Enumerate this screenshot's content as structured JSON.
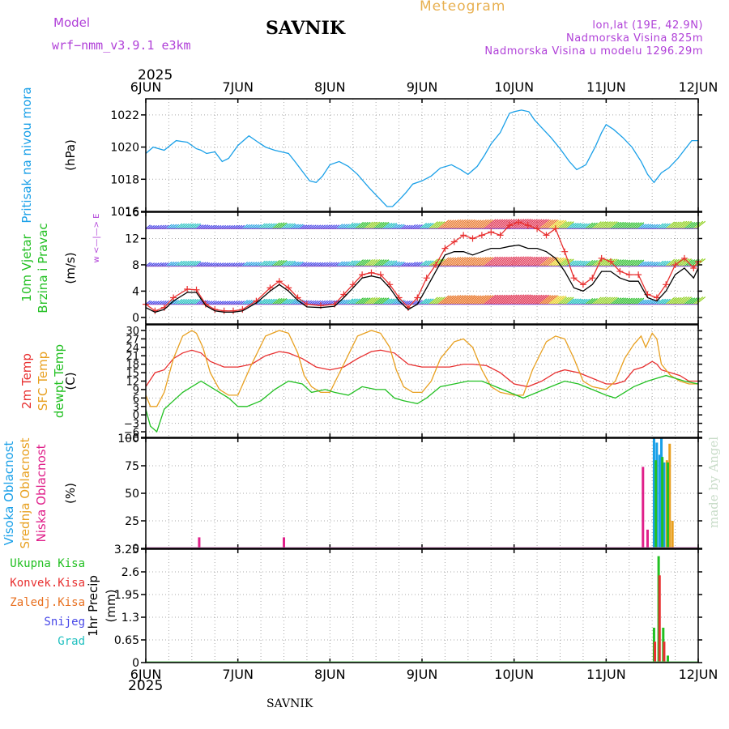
{
  "header": {
    "model_label": "Model",
    "model_name": "wrf−nmm_v3.9.1  e3km",
    "station": "SAVNIK",
    "app_title": "Meteogram",
    "lonlat": "lon,lat (19E, 42.9N)",
    "elevation": "Nadmorska Visina 825m",
    "model_elevation": "Nadmorska Visina u modelu 1296.29m",
    "footer_station": "SAVNIK",
    "credit": "made by Angel",
    "colors": {
      "model": "#b040d8",
      "title": "#000000",
      "meteogram": "#e8b050",
      "info": "#b040d8"
    }
  },
  "time_axis": {
    "year": "2025",
    "labels": [
      "6JUN",
      "7JUN",
      "8JUN",
      "9JUN",
      "10JUN",
      "11JUN",
      "12JUN"
    ],
    "day_count": 6
  },
  "chart_data": [
    {
      "type": "line",
      "id": "pressure",
      "ylabel_parts": [
        {
          "text": "Pritisak na nivou mora",
          "color": "#1aa0e8"
        }
      ],
      "unit": "(hPa)",
      "ylim": [
        1016,
        1023
      ],
      "yticks": [
        1016,
        1018,
        1020,
        1022
      ],
      "grid": true,
      "series": [
        {
          "name": "pressure",
          "color": "#1aa0e8",
          "x": [
            0,
            0.08,
            0.2,
            0.33,
            0.45,
            0.55,
            0.6,
            0.66,
            0.75,
            0.83,
            0.9,
            1.0,
            1.12,
            1.22,
            1.3,
            1.4,
            1.55,
            1.62,
            1.7,
            1.78,
            1.85,
            1.92,
            2.0,
            2.1,
            2.2,
            2.3,
            2.42,
            2.52,
            2.62,
            2.68,
            2.75,
            2.83,
            2.9,
            3.0,
            3.1,
            3.2,
            3.32,
            3.42,
            3.5,
            3.6,
            3.68,
            3.75,
            3.85,
            3.95,
            4.0,
            4.08,
            4.16,
            4.22,
            4.3,
            4.4,
            4.5,
            4.6,
            4.68,
            4.78,
            4.88,
            4.95,
            5.0,
            5.08,
            5.18,
            5.28,
            5.38,
            5.45,
            5.52,
            5.6,
            5.68,
            5.78,
            5.86,
            5.93,
            6.0
          ],
          "values": [
            1019.6,
            1020.0,
            1019.8,
            1020.4,
            1020.3,
            1019.9,
            1019.8,
            1019.6,
            1019.7,
            1019.1,
            1019.3,
            1020.1,
            1020.7,
            1020.3,
            1020.0,
            1019.8,
            1019.6,
            1019.1,
            1018.5,
            1017.9,
            1017.8,
            1018.2,
            1018.9,
            1019.1,
            1018.8,
            1018.3,
            1017.5,
            1016.9,
            1016.3,
            1016.3,
            1016.7,
            1017.2,
            1017.7,
            1017.9,
            1018.2,
            1018.7,
            1018.9,
            1018.6,
            1018.3,
            1018.8,
            1019.5,
            1020.2,
            1020.9,
            1022.1,
            1022.2,
            1022.3,
            1022.2,
            1021.7,
            1021.2,
            1020.6,
            1019.9,
            1019.1,
            1018.6,
            1018.9,
            1020.0,
            1020.9,
            1021.4,
            1021.1,
            1020.6,
            1020.0,
            1019.1,
            1018.3,
            1017.8,
            1018.4,
            1018.7,
            1019.3,
            1019.9,
            1020.4,
            1020.4
          ]
        }
      ]
    },
    {
      "type": "line",
      "id": "wind",
      "ylabel_parts": [
        {
          "text": "10m Vjetar",
          "color": "#22c022"
        },
        {
          "text": "Brzina i Pravac",
          "color": "#22c022"
        }
      ],
      "unit": "(m/s)",
      "compass_label": "w <—|—> E",
      "ylim": [
        -1,
        16
      ],
      "yticks": [
        0,
        4,
        8,
        12,
        16
      ],
      "grid": true,
      "barb_rows": [
        2,
        7.8,
        13.5
      ],
      "series": [
        {
          "name": "gust",
          "color": "#e83030",
          "x": [
            0,
            0.1,
            0.2,
            0.3,
            0.45,
            0.55,
            0.65,
            0.75,
            0.85,
            0.95,
            1.05,
            1.2,
            1.35,
            1.45,
            1.55,
            1.65,
            1.75,
            1.9,
            2.05,
            2.15,
            2.25,
            2.35,
            2.45,
            2.55,
            2.65,
            2.75,
            2.85,
            2.95,
            3.05,
            3.15,
            3.25,
            3.35,
            3.45,
            3.55,
            3.65,
            3.75,
            3.85,
            3.95,
            4.05,
            4.15,
            4.25,
            4.35,
            4.45,
            4.55,
            4.65,
            4.75,
            4.85,
            4.95,
            5.05,
            5.15,
            5.25,
            5.35,
            5.45,
            5.55,
            5.65,
            5.75,
            5.85,
            5.95,
            6.0
          ],
          "values": [
            2.0,
            1.0,
            1.5,
            3.0,
            4.3,
            4.2,
            2.0,
            1.2,
            1.0,
            1.0,
            1.2,
            2.5,
            4.5,
            5.5,
            4.5,
            3.0,
            2.0,
            1.8,
            2.0,
            3.5,
            5.0,
            6.5,
            6.8,
            6.5,
            5.0,
            3.0,
            1.5,
            3.0,
            6.0,
            8.0,
            10.5,
            11.5,
            12.5,
            12.0,
            12.5,
            13.0,
            12.5,
            14.0,
            14.5,
            14.0,
            13.5,
            12.5,
            13.5,
            10.0,
            6.0,
            5.0,
            6.0,
            9.0,
            8.5,
            7.0,
            6.5,
            6.5,
            3.5,
            3.0,
            5.0,
            8.0,
            9.0,
            7.5,
            8.5
          ]
        },
        {
          "name": "speed",
          "color": "#000000",
          "x": [
            0,
            0.1,
            0.2,
            0.3,
            0.45,
            0.55,
            0.65,
            0.75,
            0.85,
            0.95,
            1.05,
            1.2,
            1.35,
            1.45,
            1.55,
            1.65,
            1.75,
            1.9,
            2.05,
            2.15,
            2.25,
            2.35,
            2.45,
            2.55,
            2.65,
            2.75,
            2.85,
            2.95,
            3.05,
            3.15,
            3.25,
            3.35,
            3.45,
            3.55,
            3.65,
            3.75,
            3.85,
            3.95,
            4.05,
            4.15,
            4.25,
            4.35,
            4.45,
            4.55,
            4.65,
            4.75,
            4.85,
            4.95,
            5.05,
            5.15,
            5.25,
            5.35,
            5.45,
            5.55,
            5.65,
            5.75,
            5.85,
            5.95,
            6.0
          ],
          "values": [
            1.5,
            0.8,
            1.2,
            2.5,
            3.8,
            3.8,
            1.8,
            1.0,
            0.8,
            0.8,
            1.0,
            2.2,
            4.0,
            5.0,
            4.0,
            2.6,
            1.6,
            1.5,
            1.7,
            3.0,
            4.5,
            6.0,
            6.3,
            6.0,
            4.5,
            2.5,
            1.2,
            2.0,
            4.5,
            7.0,
            9.5,
            10.0,
            10.0,
            9.5,
            10.0,
            10.5,
            10.5,
            10.8,
            11.0,
            10.5,
            10.5,
            10.0,
            9.0,
            7.0,
            4.5,
            4.0,
            5.0,
            7.0,
            7.0,
            6.0,
            5.5,
            5.5,
            3.0,
            2.5,
            4.0,
            6.5,
            7.5,
            6.0,
            7.5
          ]
        }
      ]
    },
    {
      "type": "line",
      "id": "temperature",
      "ylabel_parts": [
        {
          "text": "2m Temp",
          "color": "#e83030"
        },
        {
          "text": "SFC Temp",
          "color": "#e8a020"
        },
        {
          "text": "dewpt Temp",
          "color": "#22c022"
        }
      ],
      "unit": "(C)",
      "ylim": [
        -8,
        32
      ],
      "yticks": [
        -8,
        -6,
        -3,
        0,
        3,
        6,
        9,
        12,
        15,
        18,
        21,
        24,
        27,
        30
      ],
      "grid": true,
      "series": [
        {
          "name": "2m Temp",
          "color": "#e83030",
          "x": [
            0,
            0.1,
            0.2,
            0.3,
            0.4,
            0.5,
            0.6,
            0.7,
            0.85,
            1.0,
            1.15,
            1.3,
            1.45,
            1.55,
            1.7,
            1.85,
            2.0,
            2.15,
            2.3,
            2.45,
            2.55,
            2.7,
            2.85,
            3.0,
            3.15,
            3.3,
            3.45,
            3.55,
            3.7,
            3.85,
            4.0,
            4.15,
            4.3,
            4.45,
            4.55,
            4.7,
            4.85,
            5.0,
            5.1,
            5.2,
            5.3,
            5.4,
            5.5,
            5.55,
            5.6,
            5.7,
            5.8,
            5.9,
            6.0
          ],
          "values": [
            10,
            15,
            16,
            20,
            22,
            23,
            22,
            19,
            17,
            17,
            18,
            21,
            22.5,
            22,
            20,
            17,
            16,
            17,
            20,
            22.5,
            23,
            22,
            18,
            17,
            17,
            17,
            18,
            18,
            17.5,
            15,
            11,
            10,
            12,
            15,
            16,
            15,
            13,
            11,
            11,
            12,
            16,
            17,
            19,
            18,
            16,
            15,
            14,
            12,
            12
          ]
        },
        {
          "name": "SFC Temp",
          "color": "#e8a020",
          "x": [
            0,
            0.05,
            0.12,
            0.2,
            0.3,
            0.4,
            0.5,
            0.55,
            0.62,
            0.7,
            0.8,
            0.9,
            1.0,
            1.15,
            1.3,
            1.45,
            1.55,
            1.65,
            1.72,
            1.8,
            1.9,
            2.0,
            2.15,
            2.3,
            2.45,
            2.55,
            2.65,
            2.72,
            2.8,
            2.9,
            3.0,
            3.1,
            3.2,
            3.35,
            3.45,
            3.55,
            3.65,
            3.75,
            3.85,
            4.0,
            4.1,
            4.2,
            4.35,
            4.45,
            4.55,
            4.65,
            4.75,
            4.85,
            5.0,
            5.1,
            5.2,
            5.3,
            5.38,
            5.43,
            5.5,
            5.55,
            5.6,
            5.7,
            5.8,
            5.9,
            6.0
          ],
          "values": [
            7,
            3,
            3,
            8,
            20,
            28,
            30,
            29,
            24,
            15,
            9,
            7,
            7,
            18,
            28,
            30,
            29,
            22,
            14,
            10,
            8,
            8,
            18,
            28,
            30,
            29,
            24,
            16,
            10,
            8,
            8,
            12,
            20,
            26,
            27,
            24,
            16,
            10,
            8,
            7,
            7,
            16,
            26,
            28,
            27,
            20,
            12,
            10,
            9,
            12,
            20,
            25,
            28,
            24,
            29,
            27,
            18,
            14,
            12,
            11,
            11
          ]
        },
        {
          "name": "dewpt Temp",
          "color": "#22c022",
          "x": [
            0,
            0.05,
            0.12,
            0.2,
            0.3,
            0.4,
            0.5,
            0.6,
            0.75,
            0.9,
            1.0,
            1.1,
            1.25,
            1.4,
            1.55,
            1.7,
            1.8,
            1.95,
            2.05,
            2.2,
            2.35,
            2.5,
            2.6,
            2.7,
            2.8,
            2.95,
            3.05,
            3.2,
            3.35,
            3.5,
            3.65,
            3.8,
            3.95,
            4.1,
            4.25,
            4.4,
            4.55,
            4.7,
            4.85,
            5.0,
            5.1,
            5.2,
            5.3,
            5.45,
            5.55,
            5.65,
            5.75,
            5.85,
            6.0
          ],
          "values": [
            2,
            -4,
            -6,
            2,
            5,
            8,
            10,
            12,
            9,
            6,
            3,
            3,
            5,
            9,
            12,
            11,
            8,
            9,
            8,
            7,
            10,
            9,
            9,
            6,
            5,
            4,
            6,
            10,
            11,
            12,
            12,
            10,
            8,
            6,
            8,
            10,
            12,
            11,
            9,
            7,
            6,
            8,
            10,
            12,
            13,
            14,
            13,
            12,
            11
          ]
        }
      ]
    },
    {
      "type": "bar",
      "id": "cloud",
      "ylabel_parts": [
        {
          "text": "Visoka Oblacnost",
          "color": "#1aa0e8"
        },
        {
          "text": "Srednja Oblacnost",
          "color": "#e8a020"
        },
        {
          "text": "Niska Oblacnost",
          "color": "#e0208a"
        }
      ],
      "unit": "(%)",
      "ylim": [
        0,
        100
      ],
      "yticks": [
        0,
        25,
        50,
        75,
        100
      ],
      "grid": true,
      "series": [
        {
          "name": "Niska Oblacnost",
          "color": "#e0208a",
          "x": [
            0.58,
            1.5,
            5.4,
            5.45
          ],
          "values": [
            10,
            10,
            74,
            17
          ]
        },
        {
          "name": "Visoka Oblacnost",
          "color": "#1aa0e8",
          "x": [
            5.52,
            5.55,
            5.58,
            5.6,
            5.63
          ],
          "values": [
            100,
            96,
            85,
            100,
            78
          ]
        },
        {
          "name": "Srednja Oblacnost",
          "color": "#e8a020",
          "x": [
            5.66,
            5.69,
            5.72
          ],
          "values": [
            80,
            95,
            25
          ]
        },
        {
          "name": "Ukupna",
          "color": "#22c022",
          "x": [
            5.54,
            5.61,
            5.67
          ],
          "values": [
            80,
            83,
            78
          ]
        }
      ]
    },
    {
      "type": "bar",
      "id": "precip",
      "ylabel_parts": [
        {
          "text": "1hr Precip",
          "color": "#000000"
        }
      ],
      "unit": "(mm)",
      "ylim": [
        0,
        3.25
      ],
      "yticks": [
        0,
        0.65,
        1.3,
        1.95,
        2.6,
        3.25
      ],
      "ytick_labels": [
        "0",
        "0.65",
        "1.3",
        "1.95",
        "2.6",
        "3.25"
      ],
      "grid": true,
      "legend": [
        {
          "text": "Ukupna Kisa",
          "color": "#22c022"
        },
        {
          "text": "Konvek.Kisa",
          "color": "#e83030"
        },
        {
          "text": "Zaledj.Kisa",
          "color": "#e87020"
        },
        {
          "text": "Snijeg",
          "color": "#4848e8"
        },
        {
          "text": "Grad",
          "color": "#20c0c0"
        }
      ],
      "series": [
        {
          "name": "Ukupna Kisa",
          "color": "#22c022",
          "x": [
            5.52,
            5.57,
            5.62,
            5.67
          ],
          "values": [
            1.0,
            3.05,
            1.0,
            0.2
          ]
        },
        {
          "name": "Konvek.Kisa",
          "color": "#e83030",
          "x": [
            5.53,
            5.58,
            5.63
          ],
          "values": [
            0.6,
            2.5,
            0.6
          ]
        }
      ]
    }
  ]
}
